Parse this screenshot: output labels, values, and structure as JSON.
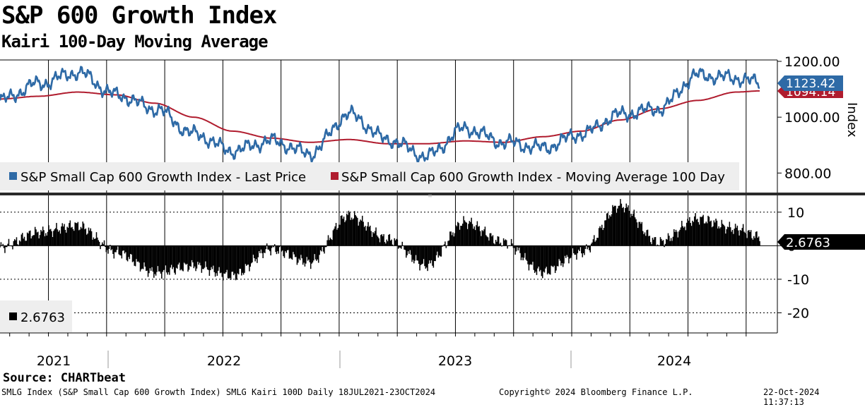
{
  "header": {
    "title": "S&P 600 Growth Index",
    "subtitle": "Kairi 100-Day Moving Average"
  },
  "source": "Source: CHARTbeat",
  "footer": {
    "left": "SMLG Index (S&P Small Cap 600 Growth Index) SMLG Kairi 100D  Daily 18JUL2021-23OCT2024",
    "center": "Copyright© 2024 Bloomberg Finance L.P.",
    "right": "22-Oct-2024 11:37:13"
  },
  "colors": {
    "price": "#2e6aa6",
    "moving_average": "#b01c2e",
    "kairi": "#000000",
    "price_tag": "#2e6aa6",
    "ma_tag": "#b01c2e"
  },
  "chart_data": [
    {
      "type": "line",
      "panel": "upper",
      "ylabel": "Index",
      "ylim": [
        730,
        1205
      ],
      "yticks": [
        {
          "value": 1200,
          "label": "1200.00"
        },
        {
          "value": 1000,
          "label": "1000.00"
        },
        {
          "value": 800,
          "label": "800.00"
        }
      ],
      "x_months": [
        0,
        2,
        4,
        6,
        8,
        10,
        12,
        14,
        16,
        18,
        20,
        22,
        24,
        26,
        28,
        30,
        32,
        34,
        36,
        38,
        39.2
      ],
      "x_note": "months since Jul 2021",
      "series": [
        {
          "name": "S&P Small Cap 600 Growth Index - Last Price",
          "values": [
            1060,
            1120,
            1160,
            1080,
            1030,
            940,
            880,
            915,
            870,
            1010,
            920,
            860,
            960,
            910,
            890,
            940,
            1010,
            1030,
            1150,
            1140,
            1123.42
          ]
        },
        {
          "name": "S&P Small Cap 600 Growth Index - Moving Average 100 Day",
          "values": [
            1065,
            1075,
            1090,
            1080,
            1050,
            1000,
            950,
            925,
            910,
            920,
            905,
            905,
            915,
            910,
            930,
            950,
            990,
            1030,
            1060,
            1090,
            1094.14
          ]
        }
      ],
      "legend": [
        "S&P Small Cap 600 Growth Index - Last Price",
        "S&P Small Cap 600 Growth Index - Moving Average 100 Day"
      ],
      "last_value_tags": [
        {
          "series": "Last Price",
          "label": "1123.42"
        },
        {
          "series": "Moving Average 100 Day",
          "label": "1094.14"
        }
      ]
    },
    {
      "type": "bar",
      "panel": "lower",
      "name": "SMLG Kairi 100D",
      "ylim": [
        -26,
        15
      ],
      "yticks": [
        {
          "value": 10,
          "label": "10"
        },
        {
          "value": 0,
          "label": "0"
        },
        {
          "value": -10,
          "label": "-10"
        },
        {
          "value": -20,
          "label": "-20"
        }
      ],
      "x_months": [
        0,
        2,
        4,
        6,
        8,
        10,
        12,
        14,
        16,
        18,
        20,
        22,
        24,
        26,
        28,
        30,
        32,
        34,
        36,
        38,
        39.2
      ],
      "values": [
        -0.5,
        4,
        6,
        -2,
        -8,
        -6,
        -9,
        -1,
        -5,
        9,
        2,
        -6,
        7,
        1,
        -8,
        -2,
        12,
        1,
        8,
        5,
        2.6763
      ],
      "last_value_tag": "2.6763",
      "legend_value": "2.6763"
    }
  ],
  "x_axis": {
    "years": [
      "2021",
      "2022",
      "2023",
      "2024"
    ]
  }
}
